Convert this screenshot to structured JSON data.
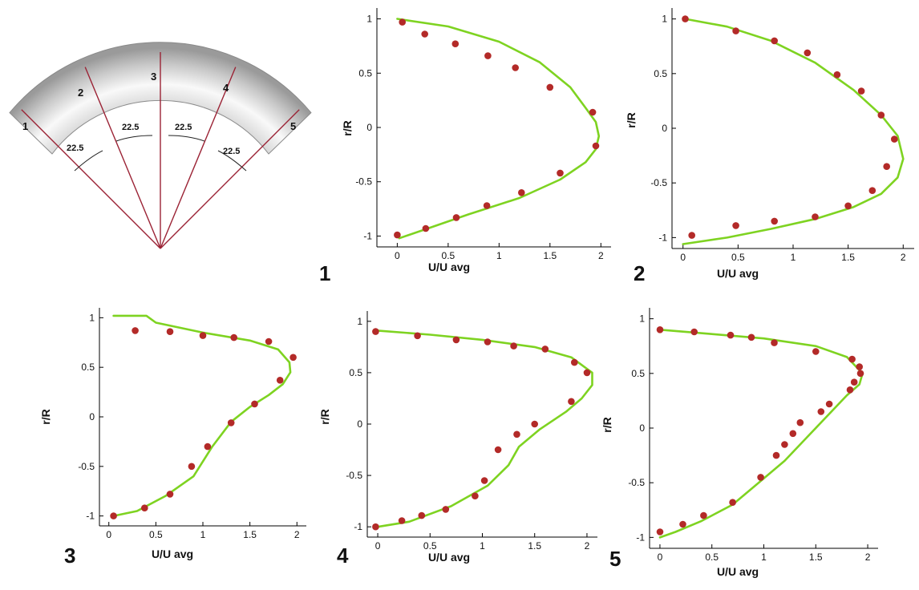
{
  "figure": {
    "schematic": {
      "section_labels": [
        "1",
        "2",
        "3",
        "4",
        "5"
      ],
      "angle_labels": [
        "22.5",
        "22.5",
        "22.5",
        "22.5"
      ]
    },
    "colors": {
      "line": "#7ed321",
      "point": "#b32a28",
      "bend_line": "#9b2335"
    }
  },
  "chart_data": [
    {
      "type": "line",
      "panel_label": "1",
      "xlabel": "U/U avg",
      "ylabel": "r/R",
      "xlim": [
        -0.2,
        2.1
      ],
      "ylim": [
        -1.1,
        1.1
      ],
      "xticks": [
        "0",
        "0.5",
        "1",
        "1.5",
        "2"
      ],
      "yticks": [
        "1",
        "0.5",
        "0",
        "-0.5",
        "-1"
      ],
      "line": {
        "x": [
          0,
          0.5,
          1.0,
          1.4,
          1.7,
          1.85,
          1.95,
          1.98,
          1.95,
          1.85,
          1.6,
          1.2,
          0.7,
          0.3,
          0.02
        ],
        "y": [
          1.0,
          0.93,
          0.79,
          0.6,
          0.37,
          0.18,
          0.05,
          -0.08,
          -0.2,
          -0.32,
          -0.48,
          -0.65,
          -0.8,
          -0.93,
          -1.02
        ]
      },
      "points": {
        "x": [
          0.05,
          0.27,
          0.57,
          0.89,
          1.16,
          1.5,
          1.92,
          1.95,
          1.6,
          1.22,
          0.88,
          0.58,
          0.28,
          0.0
        ],
        "y": [
          0.97,
          0.86,
          0.77,
          0.66,
          0.55,
          0.37,
          0.14,
          -0.17,
          -0.42,
          -0.6,
          -0.72,
          -0.83,
          -0.93,
          -0.99
        ]
      }
    },
    {
      "type": "line",
      "panel_label": "2",
      "xlabel": "U/U avg",
      "ylabel": "r/R",
      "xlim": [
        -0.1,
        2.1
      ],
      "ylim": [
        -1.1,
        1.1
      ],
      "xticks": [
        "0",
        "0.5",
        "1",
        "1.5",
        "2"
      ],
      "yticks": [
        "1",
        "0.5",
        "0",
        "-0.5",
        "-1"
      ],
      "line": {
        "x": [
          0.02,
          0.4,
          0.8,
          1.2,
          1.55,
          1.8,
          1.95,
          2.0,
          1.95,
          1.8,
          1.55,
          1.2,
          0.8,
          0.4,
          0.0
        ],
        "y": [
          1.0,
          0.93,
          0.8,
          0.6,
          0.35,
          0.12,
          -0.07,
          -0.28,
          -0.45,
          -0.6,
          -0.72,
          -0.83,
          -0.92,
          -1.0,
          -1.06
        ]
      },
      "points": {
        "x": [
          0.02,
          0.48,
          0.83,
          1.13,
          1.4,
          1.62,
          1.8,
          1.92,
          1.85,
          1.72,
          1.5,
          1.2,
          0.83,
          0.48,
          0.08
        ],
        "y": [
          1.0,
          0.89,
          0.8,
          0.69,
          0.49,
          0.34,
          0.12,
          -0.1,
          -0.35,
          -0.57,
          -0.71,
          -0.81,
          -0.85,
          -0.89,
          -0.98
        ]
      }
    },
    {
      "type": "line",
      "panel_label": "3",
      "xlabel": "U/U avg",
      "ylabel": "r/R",
      "xlim": [
        -0.1,
        2.1
      ],
      "ylim": [
        -1.1,
        1.1
      ],
      "xticks": [
        "0",
        "0.5",
        "1",
        "1.5",
        "2"
      ],
      "yticks": [
        "1",
        "0.5",
        "0",
        "-0.5",
        "-1"
      ],
      "line": {
        "x": [
          0.05,
          0.4,
          0.5,
          1.0,
          1.5,
          1.8,
          1.92,
          1.93,
          1.85,
          1.7,
          1.5,
          1.3,
          1.1,
          0.9,
          0.6,
          0.3,
          0.05
        ],
        "y": [
          1.02,
          1.02,
          0.95,
          0.85,
          0.77,
          0.68,
          0.55,
          0.45,
          0.33,
          0.22,
          0.1,
          -0.05,
          -0.3,
          -0.6,
          -0.8,
          -0.95,
          -1.0
        ]
      },
      "points": {
        "x": [
          0.28,
          0.65,
          1.0,
          1.33,
          1.7,
          1.96,
          1.82,
          1.55,
          1.3,
          1.05,
          0.88,
          0.65,
          0.38,
          0.05
        ],
        "y": [
          0.87,
          0.86,
          0.82,
          0.8,
          0.76,
          0.6,
          0.37,
          0.13,
          -0.06,
          -0.3,
          -0.5,
          -0.78,
          -0.92,
          -1.0
        ]
      }
    },
    {
      "type": "line",
      "panel_label": "4",
      "xlabel": "U/U avg",
      "ylabel": "r/R",
      "xlim": [
        -0.1,
        2.1
      ],
      "ylim": [
        -1.1,
        1.1
      ],
      "xticks": [
        "0",
        "0.5",
        "1",
        "1.5",
        "2"
      ],
      "yticks": [
        "1",
        "0.5",
        "0",
        "-0.5",
        "-1"
      ],
      "line": {
        "x": [
          0.0,
          0.5,
          1.0,
          1.5,
          1.85,
          2.05,
          2.05,
          1.95,
          1.8,
          1.55,
          1.35,
          1.25,
          1.05,
          0.7,
          0.3,
          0.0
        ],
        "y": [
          0.91,
          0.87,
          0.82,
          0.75,
          0.65,
          0.5,
          0.38,
          0.25,
          0.12,
          -0.05,
          -0.22,
          -0.4,
          -0.6,
          -0.8,
          -0.95,
          -1.0
        ]
      },
      "points": {
        "x": [
          -0.02,
          0.38,
          0.75,
          1.05,
          1.3,
          1.6,
          1.88,
          2.0,
          1.85,
          1.5,
          1.33,
          1.15,
          1.02,
          0.93,
          0.65,
          0.42,
          0.23,
          -0.02
        ],
        "y": [
          0.9,
          0.86,
          0.82,
          0.8,
          0.76,
          0.73,
          0.6,
          0.5,
          0.22,
          0.0,
          -0.1,
          -0.25,
          -0.55,
          -0.7,
          -0.83,
          -0.89,
          -0.94,
          -1.0
        ]
      }
    },
    {
      "type": "line",
      "panel_label": "5",
      "xlabel": "U/U avg",
      "ylabel": "r/R",
      "xlim": [
        -0.1,
        2.1
      ],
      "ylim": [
        -1.1,
        1.1
      ],
      "xticks": [
        "0",
        "0.5",
        "1",
        "1.5",
        "2"
      ],
      "yticks": [
        "1",
        "0.5",
        "0",
        "-0.5",
        "-1"
      ],
      "line": {
        "x": [
          0.0,
          0.5,
          1.0,
          1.5,
          1.8,
          1.95,
          1.92,
          1.8,
          1.6,
          1.4,
          1.2,
          0.95,
          0.7,
          0.4,
          0.15,
          0.0
        ],
        "y": [
          0.9,
          0.86,
          0.82,
          0.75,
          0.65,
          0.5,
          0.4,
          0.3,
          0.1,
          -0.1,
          -0.3,
          -0.5,
          -0.7,
          -0.85,
          -0.95,
          -1.0
        ]
      },
      "points": {
        "x": [
          0.0,
          0.33,
          0.68,
          0.88,
          1.1,
          1.5,
          1.85,
          1.92,
          1.93,
          1.87,
          1.83,
          1.63,
          1.55,
          1.35,
          1.28,
          1.2,
          1.12,
          0.97,
          0.7,
          0.42,
          0.22,
          0.0
        ],
        "y": [
          0.9,
          0.88,
          0.85,
          0.83,
          0.78,
          0.7,
          0.63,
          0.56,
          0.5,
          0.42,
          0.35,
          0.22,
          0.15,
          0.05,
          -0.05,
          -0.15,
          -0.25,
          -0.45,
          -0.68,
          -0.8,
          -0.88,
          -0.95
        ]
      }
    }
  ]
}
